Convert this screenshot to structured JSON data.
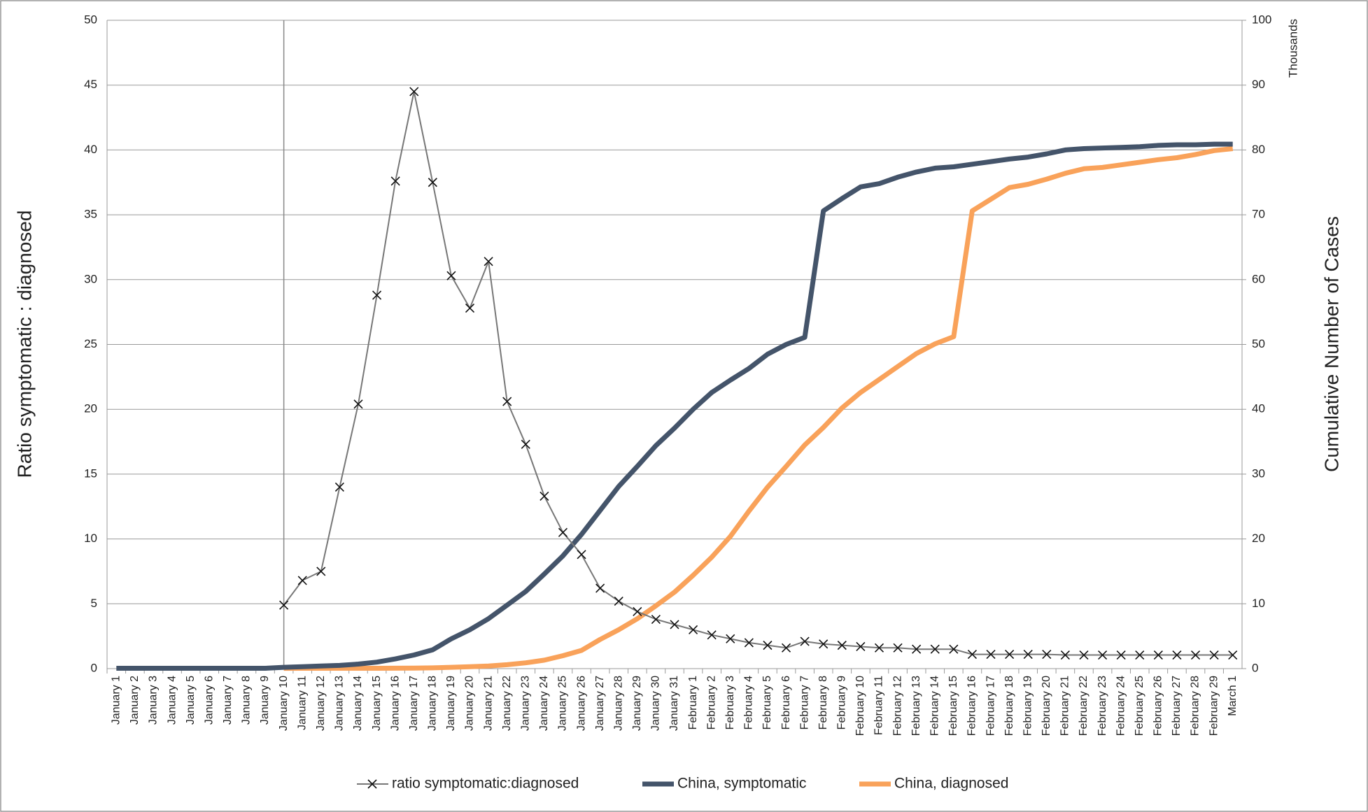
{
  "chart_data": {
    "type": "line",
    "categories": [
      "January 1",
      "January 2",
      "January 3",
      "January 4",
      "January 5",
      "January 6",
      "January 7",
      "January 8",
      "January 9",
      "January 10",
      "January 11",
      "January 12",
      "January 13",
      "January 14",
      "January 15",
      "January 16",
      "January 17",
      "January 18",
      "January 19",
      "January 20",
      "January 21",
      "January 22",
      "January 23",
      "January 24",
      "January 25",
      "January 26",
      "January 27",
      "January 28",
      "January 29",
      "January 30",
      "January 31",
      "February 1",
      "February 2",
      "February 3",
      "February 4",
      "February 5",
      "February 6",
      "February 7",
      "February 8",
      "February 9",
      "February 10",
      "February 11",
      "February 12",
      "February 13",
      "February 14",
      "February 15",
      "February 16",
      "February 17",
      "February 18",
      "February 19",
      "February 20",
      "February 21",
      "February 22",
      "February 23",
      "February 24",
      "February 25",
      "February 26",
      "February 27",
      "February 28",
      "February 29",
      "March 1"
    ],
    "series": [
      {
        "name": "ratio symptomatic:diagnosed",
        "color": "#777777",
        "marker": "x",
        "axis": "y",
        "values": [
          null,
          null,
          null,
          null,
          null,
          null,
          null,
          null,
          null,
          4.9,
          6.8,
          7.5,
          14,
          20.4,
          28.8,
          37.6,
          44.5,
          37.5,
          30.3,
          27.8,
          31.4,
          20.6,
          17.3,
          13.3,
          10.5,
          8.8,
          6.2,
          5.2,
          4.4,
          3.8,
          3.4,
          3.0,
          2.6,
          2.3,
          2.0,
          1.8,
          1.6,
          2.1,
          1.9,
          1.8,
          1.7,
          1.6,
          1.6,
          1.5,
          1.5,
          1.5,
          1.1,
          1.1,
          1.1,
          1.1,
          1.1,
          1.05,
          1.05,
          1.05,
          1.05,
          1.05,
          1.05,
          1.05,
          1.05,
          1.05,
          1.05
        ]
      },
      {
        "name": "China, symptomatic",
        "color": "#44546a",
        "axis": "y2",
        "values": [
          0.05,
          0.05,
          0.05,
          0.05,
          0.05,
          0.05,
          0.05,
          0.05,
          0.05,
          0.2,
          0.3,
          0.4,
          0.5,
          0.7,
          1.0,
          1.5,
          2.1,
          2.9,
          4.6,
          6.0,
          7.7,
          9.8,
          11.9,
          14.6,
          17.4,
          20.7,
          24.4,
          28.1,
          31.2,
          34.4,
          37.1,
          40.0,
          42.6,
          44.5,
          46.3,
          48.5,
          50.0,
          51.1,
          70.6,
          72.5,
          74.3,
          74.8,
          75.8,
          76.6,
          77.2,
          77.4,
          77.8,
          78.2,
          78.6,
          78.9,
          79.4,
          80.0,
          80.2,
          80.3,
          80.4,
          80.5,
          80.7,
          80.8,
          80.8,
          80.9,
          80.9
        ]
      },
      {
        "name": "China, diagnosed",
        "color": "#f9a25a",
        "axis": "y2",
        "values": [
          null,
          null,
          null,
          null,
          null,
          null,
          null,
          null,
          null,
          0.04,
          0.05,
          0.05,
          0.05,
          0.05,
          0.05,
          0.06,
          0.08,
          0.12,
          0.2,
          0.3,
          0.4,
          0.6,
          0.9,
          1.3,
          2.0,
          2.8,
          4.5,
          6.0,
          7.7,
          9.7,
          11.8,
          14.4,
          17.2,
          20.4,
          24.3,
          28.0,
          31.2,
          34.5,
          37.2,
          40.2,
          42.6,
          44.6,
          46.6,
          48.6,
          50.1,
          51.2,
          70.6,
          72.4,
          74.2,
          74.7,
          75.5,
          76.4,
          77.1,
          77.3,
          77.7,
          78.1,
          78.5,
          78.8,
          79.3,
          79.9,
          80.2
        ]
      }
    ],
    "ylabel": "Ratio symptomatic : diagnosed",
    "y2label": "Cumulative Number of Cases",
    "y2unit": "Thousands",
    "ylim": [
      0,
      50
    ],
    "yticks": [
      0,
      5,
      10,
      15,
      20,
      25,
      30,
      35,
      40,
      45,
      50
    ],
    "y2lim": [
      0,
      100
    ],
    "y2ticks": [
      0,
      10,
      20,
      30,
      40,
      50,
      60,
      70,
      80,
      90,
      100
    ],
    "grid": true,
    "legend": "bottom"
  }
}
